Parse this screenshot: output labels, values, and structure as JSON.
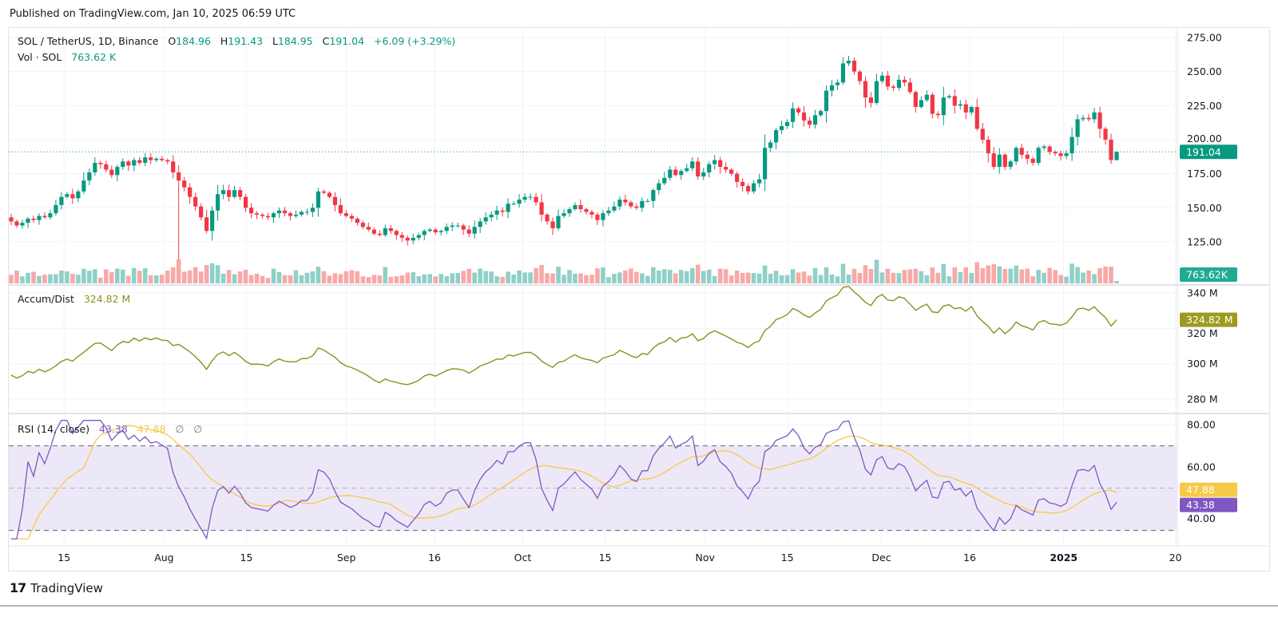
{
  "header": {
    "published": "Published on TradingView.com, Jan 10, 2025 06:59 UTC"
  },
  "legend": {
    "symbol": "SOL / TetherUS, 1D, Binance",
    "open_label": "O",
    "open": "184.96",
    "high_label": "H",
    "high": "191.43",
    "low_label": "L",
    "low": "184.95",
    "close_label": "C",
    "close": "191.04",
    "change": "+6.09 (+3.29%)",
    "vol_label": "Vol · SOL",
    "vol_value": "763.62 K",
    "ad_label": "Accum/Dist",
    "ad_value": "324.82 M",
    "rsi_label": "RSI (14, close)",
    "rsi_value": "43.38",
    "rsi_ma_value": "47.88",
    "rsi_null1": "∅",
    "rsi_null2": "∅"
  },
  "footer": {
    "brand": "TradingView",
    "logo_mark": "17"
  },
  "colors": {
    "up": "#089981",
    "down": "#f23645",
    "vol_up": "#8fd0c8",
    "vol_down": "#f7a9a7",
    "ad_line": "#8f8f1f",
    "rsi_line": "#7e57c2",
    "rsi_ma": "#f7c948",
    "rsi_band": "#ede8f7",
    "grid": "#f0f3fa"
  },
  "chart_data": {
    "type": "candlestick",
    "title": "SOL / TetherUS, 1D, Binance",
    "start_date": "2024-07-06",
    "end_date": "2025-01-10",
    "x_ticks": [
      {
        "label": "15",
        "date": "2024-07-15"
      },
      {
        "label": "Aug",
        "date": "2024-08-01"
      },
      {
        "label": "15",
        "date": "2024-08-15"
      },
      {
        "label": "Sep",
        "date": "2024-09-01"
      },
      {
        "label": "16",
        "date": "2024-09-16"
      },
      {
        "label": "Oct",
        "date": "2024-10-01"
      },
      {
        "label": "15",
        "date": "2024-10-15"
      },
      {
        "label": "Nov",
        "date": "2024-11-01"
      },
      {
        "label": "15",
        "date": "2024-11-15"
      },
      {
        "label": "Dec",
        "date": "2024-12-01"
      },
      {
        "label": "16",
        "date": "2024-12-16"
      },
      {
        "label": "2025",
        "date": "2025-01-01",
        "bold": true
      },
      {
        "label": "20",
        "date": "2025-01-20"
      }
    ],
    "price_pane": {
      "ylim": [
        105,
        280
      ],
      "y_ticks": [
        "275.00",
        "250.00",
        "225.00",
        "200.00",
        "175.00",
        "150.00",
        "125.00"
      ],
      "last_price": 191.04,
      "last_price_label": "191.04",
      "closes": [
        140,
        137,
        139,
        142,
        141,
        144,
        143,
        146,
        152,
        158,
        160,
        157,
        162,
        170,
        176,
        183,
        182,
        178,
        174,
        180,
        184,
        181,
        185,
        183,
        187,
        185,
        186,
        185,
        184,
        176,
        170,
        165,
        158,
        151,
        143,
        133,
        148,
        160,
        163,
        158,
        163,
        158,
        150,
        146,
        145,
        144,
        143,
        146,
        148,
        146,
        144,
        145,
        147,
        147,
        150,
        162,
        161,
        158,
        152,
        146,
        144,
        142,
        139,
        136,
        134,
        131,
        130,
        135,
        133,
        130,
        128,
        126,
        128,
        130,
        133,
        134,
        132,
        133,
        136,
        137,
        137,
        134,
        131,
        136,
        140,
        143,
        145,
        148,
        147,
        153,
        153,
        156,
        158,
        158,
        154,
        145,
        140,
        135,
        144,
        146,
        149,
        152,
        149,
        147,
        145,
        141,
        146,
        148,
        151,
        156,
        154,
        151,
        150,
        155,
        155,
        163,
        168,
        172,
        178,
        174,
        177,
        179,
        184,
        173,
        176,
        182,
        185,
        180,
        178,
        175,
        169,
        166,
        162,
        168,
        171,
        194,
        198,
        207,
        210,
        213,
        223,
        220,
        214,
        211,
        218,
        221,
        236,
        240,
        242,
        256,
        258,
        250,
        243,
        231,
        227,
        243,
        247,
        239,
        238,
        244,
        242,
        235,
        224,
        229,
        233,
        219,
        218,
        231,
        232,
        225,
        226,
        220,
        224,
        208,
        200,
        190,
        180,
        189,
        180,
        184,
        194,
        189,
        186,
        183,
        194,
        195,
        191,
        190,
        188,
        190,
        202,
        215,
        216,
        215,
        220,
        208,
        200,
        185,
        191
      ]
    },
    "volume_pane": {
      "last_volume_label": "763.62K"
    },
    "accum_dist_pane": {
      "ylim": [
        276,
        344
      ],
      "y_ticks": [
        "340 M",
        "320 M",
        "300 M",
        "280 M"
      ],
      "last_value": 324.82,
      "last_label": "324.82 M"
    },
    "rsi_pane": {
      "ylim": [
        25,
        83
      ],
      "y_ticks": [
        "80.00",
        "60.00",
        "40.00"
      ],
      "band_upper": 70,
      "band_mid": 50,
      "band_lower": 30,
      "rsi_last": 43.38,
      "rsi_last_label": "43.38",
      "ma_last": 47.88,
      "ma_last_label": "47.88"
    }
  }
}
